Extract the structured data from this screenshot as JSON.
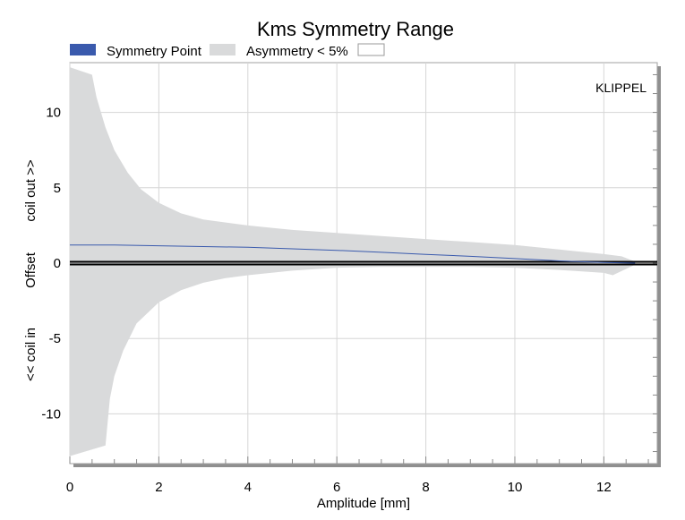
{
  "chart_data": {
    "type": "area",
    "title": "Kms Symmetry Range",
    "xlabel": "Amplitude [mm]",
    "ylabel_top": "coil out >>",
    "ylabel_mid": "Offset",
    "ylabel_bottom": "<< coil in",
    "watermark": "KLIPPEL",
    "xlim": [
      0,
      13.2
    ],
    "ylim": [
      -13.3,
      13.3
    ],
    "xticks": [
      0,
      2,
      4,
      6,
      8,
      10,
      12
    ],
    "yticks": [
      -10,
      -5,
      0,
      5,
      10
    ],
    "xtick_labels": [
      "0",
      "2",
      "4",
      "6",
      "8",
      "10",
      "12"
    ],
    "ytick_labels": [
      "-10",
      "-5",
      "0",
      "5",
      "10"
    ],
    "grid": true,
    "legend_position": "top-left",
    "legend": [
      {
        "label": "Symmetry Point",
        "color": "#3a5aad"
      },
      {
        "label": "Asymmetry < 5%",
        "color": "#d9dadb"
      },
      {
        "label": "",
        "color": "#ffffff"
      }
    ],
    "series": [
      {
        "name": "Symmetry Point",
        "x": [
          0,
          1,
          2,
          3,
          4,
          5,
          6,
          7,
          8,
          9,
          10,
          11,
          12,
          12.7
        ],
        "y": [
          1.2,
          1.2,
          1.15,
          1.1,
          1.05,
          0.95,
          0.85,
          0.72,
          0.58,
          0.45,
          0.3,
          0.15,
          0.04,
          0.0
        ]
      }
    ],
    "band": {
      "name": "Asymmetry < 5%",
      "upper": {
        "x": [
          0,
          0.5,
          0.6,
          0.8,
          1.0,
          1.3,
          1.6,
          2.0,
          2.5,
          3.0,
          4.0,
          5.0,
          6.0,
          7.0,
          8.0,
          9.0,
          10.0,
          11.0,
          12.0,
          12.4,
          12.7
        ],
        "y": [
          13.0,
          12.5,
          11.0,
          9.0,
          7.5,
          6.0,
          4.9,
          4.0,
          3.3,
          2.9,
          2.5,
          2.2,
          2.0,
          1.8,
          1.6,
          1.4,
          1.2,
          0.9,
          0.6,
          0.45,
          0.1
        ]
      },
      "lower": {
        "x": [
          0,
          0.8,
          0.9,
          1.0,
          1.2,
          1.5,
          2.0,
          2.5,
          3.0,
          3.5,
          4.0,
          5.0,
          6.0,
          7.0,
          8.0,
          9.0,
          10.0,
          11.0,
          12.0,
          12.2,
          12.7
        ],
        "y": [
          -12.8,
          -12.1,
          -9.0,
          -7.5,
          -5.8,
          -4.0,
          -2.6,
          -1.8,
          -1.3,
          -1.0,
          -0.8,
          -0.5,
          -0.3,
          -0.25,
          -0.25,
          -0.25,
          -0.3,
          -0.45,
          -0.65,
          -0.8,
          -0.1
        ]
      }
    }
  }
}
